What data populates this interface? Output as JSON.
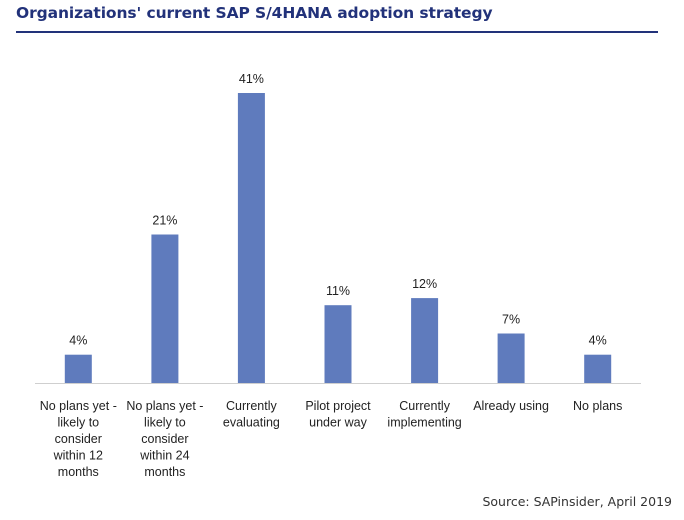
{
  "title": "Organizations' current SAP S/4HANA adoption strategy",
  "source": "Source: SAPinsider, April 2019",
  "colors": {
    "title": "#22327a",
    "bar": "#5f7bbd",
    "axis": "#cfcfcf"
  },
  "chart_data": {
    "type": "bar",
    "title": "Organizations' current SAP S/4HANA adoption strategy",
    "categories": [
      "No plans yet - likely to consider within 12 months",
      "No plans yet - likely to consider within 24 months",
      "Currently evaluating",
      "Pilot project under way",
      "Currently implementing",
      "Already using",
      "No plans"
    ],
    "category_lines": [
      [
        "No plans yet -",
        "likely to",
        "consider",
        "within 12",
        "months"
      ],
      [
        "No plans yet -",
        "likely to",
        "consider",
        "within 24",
        "months"
      ],
      [
        "Currently",
        "evaluating"
      ],
      [
        "Pilot project",
        "under way"
      ],
      [
        "Currently",
        "implementing"
      ],
      [
        "Already using"
      ],
      [
        "No plans"
      ]
    ],
    "values": [
      4,
      21,
      41,
      11,
      12,
      7,
      4
    ],
    "value_labels": [
      "4%",
      "21%",
      "41%",
      "11%",
      "12%",
      "7%",
      "4%"
    ],
    "unit": "%",
    "xlabel": "",
    "ylabel": "",
    "ylim": [
      0,
      41
    ],
    "grid": false,
    "legend": "none"
  }
}
